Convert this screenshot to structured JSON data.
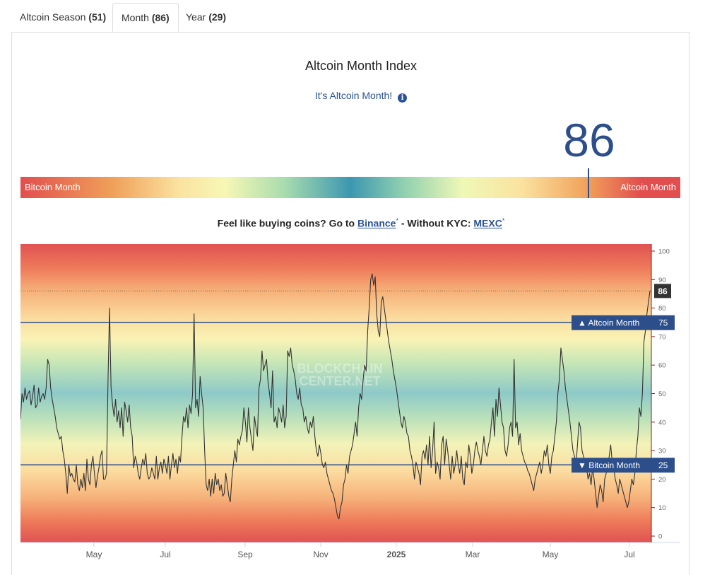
{
  "tabs": [
    {
      "label": "Altcoin Season",
      "count": "(51)",
      "active": false
    },
    {
      "label": "Month",
      "count": "(86)",
      "active": true
    },
    {
      "label": "Year",
      "count": "(29)",
      "active": false
    }
  ],
  "title": "Altcoin Month Index",
  "subtitle": "It's Altcoin Month!",
  "info_icon": "i",
  "current_value": "86",
  "gauge": {
    "left_label": "Bitcoin Month",
    "right_label": "Altcoin Month",
    "value": 86
  },
  "buyline": {
    "prefix": "Feel like buying coins? Go to ",
    "binance": "Binance",
    "mid": " - Without KYC: ",
    "mexc": "MEXC",
    "star": "*"
  },
  "watermark": [
    "BLOCKCHAIN",
    "CENTER.NET"
  ],
  "chart_data": {
    "type": "line",
    "x_ticks": [
      "May",
      "Jul",
      "Sep",
      "Nov",
      "2025",
      "Mar",
      "May",
      "Jul"
    ],
    "y_ticks": [
      0,
      10,
      20,
      30,
      40,
      50,
      60,
      70,
      80,
      90,
      100
    ],
    "ylim": [
      0,
      100
    ],
    "reference_lines": [
      {
        "label": "Altcoin Month",
        "value": 75,
        "arrow": "▲"
      },
      {
        "label": "Bitcoin Month",
        "value": 25,
        "arrow": "▼"
      }
    ],
    "current": {
      "value": 86,
      "label": "86"
    },
    "series": [
      {
        "values": [
          41,
          50,
          47,
          52,
          48,
          50,
          51,
          46,
          49,
          53,
          45,
          46,
          52,
          47,
          49,
          50,
          48,
          52,
          62,
          60,
          52,
          48,
          45,
          42,
          38,
          36,
          34,
          35,
          30,
          27,
          22,
          15,
          25,
          21,
          22,
          20,
          19,
          25,
          18,
          16,
          20,
          17,
          22,
          16,
          27,
          20,
          18,
          25,
          28,
          22,
          17,
          21,
          24,
          28,
          30,
          20,
          20,
          22,
          55,
          80,
          52,
          46,
          42,
          48,
          40,
          44,
          38,
          45,
          35,
          47,
          44,
          40,
          46,
          38,
          35,
          24,
          28,
          26,
          22,
          20,
          24,
          27,
          25,
          29,
          22,
          20,
          21,
          24,
          22,
          20,
          28,
          20,
          24,
          26,
          22,
          27,
          25,
          22,
          28,
          20,
          25,
          29,
          24,
          27,
          22,
          28,
          26,
          35,
          42,
          40,
          45,
          38,
          46,
          43,
          50,
          78,
          45,
          48,
          42,
          56,
          50,
          45,
          30,
          18,
          16,
          20,
          14,
          20,
          15,
          22,
          18,
          20,
          16,
          18,
          14,
          15,
          22,
          18,
          14,
          12,
          20,
          25,
          30,
          26,
          34,
          32,
          35,
          37,
          45,
          40,
          33,
          45,
          38,
          34,
          30,
          42,
          38,
          35,
          52,
          55,
          65,
          58,
          60,
          62,
          54,
          50,
          45,
          58,
          40,
          42,
          38,
          45,
          43,
          40,
          46,
          38,
          42,
          65,
          63,
          66,
          60,
          58,
          55,
          50,
          48,
          52,
          46,
          45,
          40,
          42,
          38,
          36,
          40,
          38,
          42,
          35,
          30,
          28,
          32,
          29,
          25,
          24,
          26,
          22,
          20,
          18,
          16,
          15,
          13,
          10,
          7,
          6,
          10,
          12,
          18,
          20,
          25,
          22,
          28,
          30,
          32,
          36,
          40,
          35,
          45,
          50,
          48,
          55,
          60,
          58,
          72,
          80,
          90,
          92,
          88,
          91,
          78,
          72,
          70,
          82,
          84,
          80,
          76,
          72,
          68,
          65,
          62,
          58,
          55,
          52,
          48,
          44,
          40,
          38,
          42,
          40,
          36,
          35,
          30,
          28,
          25,
          20,
          26,
          24,
          22,
          18,
          28,
          30,
          27,
          32,
          25,
          35,
          24,
          30,
          40,
          22,
          26,
          24,
          20,
          32,
          35,
          25,
          34,
          30,
          25,
          20,
          28,
          22,
          25,
          30,
          25,
          22,
          28,
          20,
          18,
          26,
          24,
          32,
          28,
          22,
          25,
          30,
          33,
          30,
          28,
          25,
          30,
          35,
          30,
          28,
          32,
          34,
          40,
          45,
          35,
          48,
          42,
          52,
          46,
          40,
          38,
          30,
          28,
          32,
          38,
          40,
          35,
          62,
          38,
          40,
          32,
          36,
          30,
          28,
          26,
          25,
          23,
          22,
          20,
          18,
          16,
          20,
          22,
          24,
          26,
          22,
          25,
          30,
          28,
          32,
          25,
          22,
          28,
          30,
          35,
          40,
          50,
          55,
          66,
          62,
          58,
          52,
          48,
          44,
          40,
          35,
          30,
          28,
          25,
          32,
          40,
          38,
          30,
          28,
          26,
          24,
          20,
          22,
          18,
          24,
          20,
          15,
          10,
          14,
          18,
          16,
          12,
          20,
          22,
          25,
          28,
          32,
          26,
          24,
          20,
          18,
          15,
          20,
          18,
          16,
          14,
          12,
          10,
          12,
          16,
          20,
          18,
          22,
          30,
          35,
          45,
          42,
          50,
          68,
          72,
          78,
          82,
          86
        ]
      }
    ]
  }
}
